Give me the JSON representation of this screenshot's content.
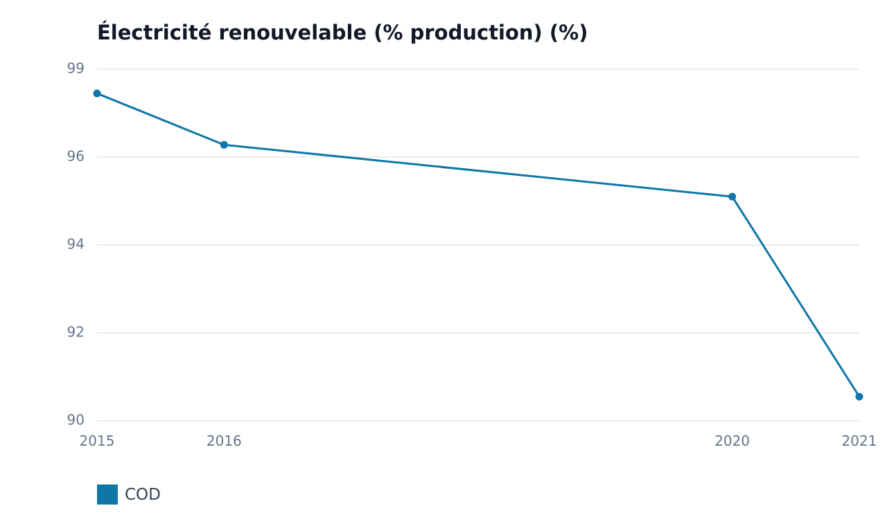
{
  "chart_data": {
    "type": "line",
    "title": "Électricité renouvelable (% production) (%)",
    "xlabel": "",
    "ylabel": "",
    "x": [
      2015,
      2016,
      2020,
      2021
    ],
    "x_tick_labels": [
      "2015",
      "2016",
      "2020",
      "2021"
    ],
    "y_ticks": [
      90,
      92,
      94,
      96,
      99
    ],
    "ylim": [
      90,
      98
    ],
    "grid": true,
    "legend_position": "bottom-left",
    "series": [
      {
        "name": "COD",
        "color": "#0e76a8",
        "values": [
          97.45,
          96.28,
          95.1,
          90.55
        ]
      }
    ]
  }
}
